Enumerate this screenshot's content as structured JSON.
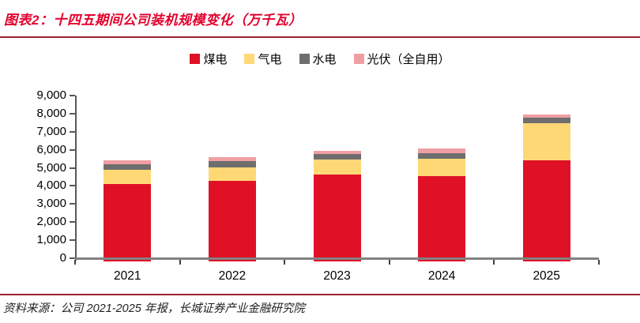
{
  "header": {
    "title": "图表2：十四五期间公司装机规模变化（万千瓦）"
  },
  "colors": {
    "title_red": "#E4002C",
    "divider_dark_red": "#9D2235",
    "axis_gray": "#828282",
    "axis_dark": "#595959"
  },
  "chart_data": {
    "type": "bar",
    "stacked": true,
    "title": "十四五期间公司装机规模变化（万千瓦）",
    "categories": [
      "2021",
      "2022",
      "2023",
      "2024",
      "2025"
    ],
    "series": [
      {
        "key": "coal",
        "name": "煤电",
        "color": "#E01127",
        "values": [
          4120,
          4270,
          4630,
          4530,
          5400
        ]
      },
      {
        "key": "gas",
        "name": "气电",
        "color": "#FFD876",
        "values": [
          770,
          770,
          830,
          980,
          2070
        ]
      },
      {
        "key": "hydro",
        "name": "水电",
        "color": "#6E6E6E",
        "values": [
          290,
          320,
          310,
          300,
          310
        ]
      },
      {
        "key": "pv",
        "name": "光伏（全自用）",
        "color": "#EF9FA3",
        "values": [
          250,
          230,
          170,
          250,
          180
        ]
      }
    ],
    "ylim": [
      0,
      9000
    ],
    "ytick_interval": 1000,
    "ytick_labels": [
      "0",
      "1,000",
      "2,000",
      "3,000",
      "4,000",
      "5,000",
      "6,000",
      "7,000",
      "8,000",
      "9,000"
    ],
    "xlabel": "",
    "ylabel": "",
    "grid": false,
    "legend_position": "top-center"
  },
  "footer": {
    "source": "资料来源：公司 2021-2025 年报，长城证券产业金融研究院"
  }
}
